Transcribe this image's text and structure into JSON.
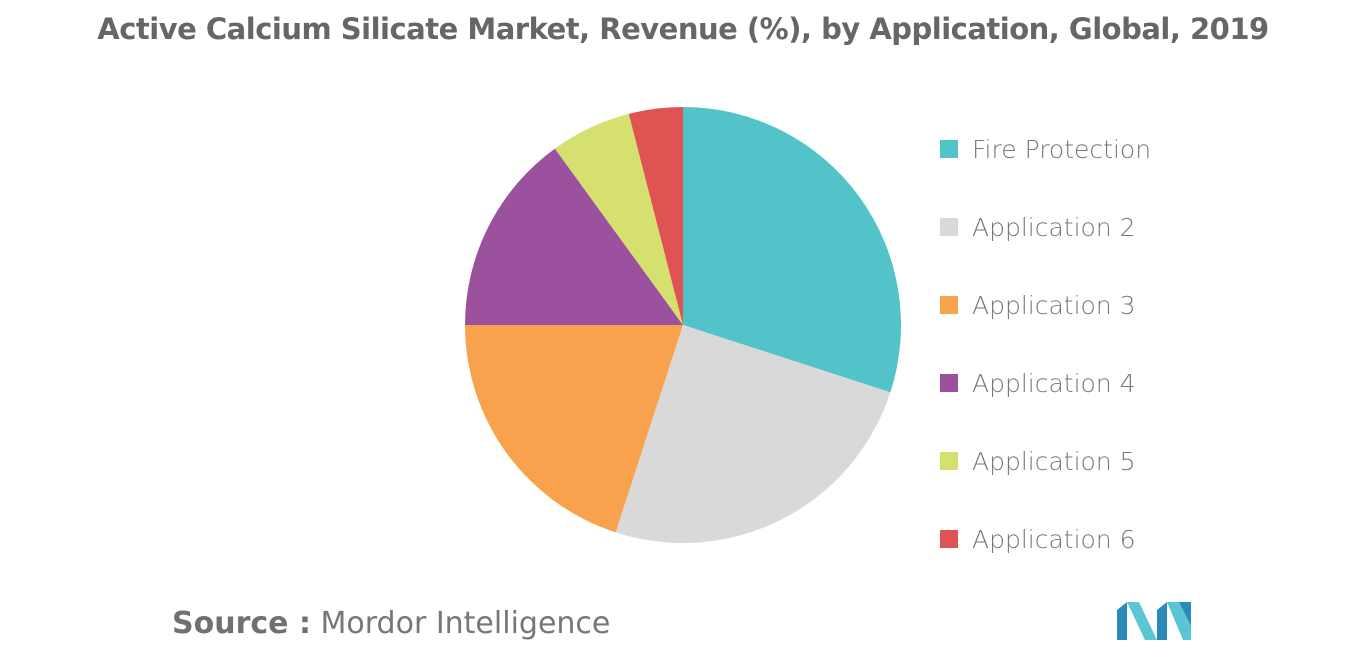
{
  "chart_data": {
    "type": "pie",
    "title": "Active Calcium Silicate Market, Revenue (%), by Application, Global, 2019",
    "categories": [
      "Fire Protection",
      "Application 2",
      "Application 3",
      "Application 4",
      "Application 5",
      "Application 6"
    ],
    "values": [
      30,
      25,
      20,
      15,
      6,
      4
    ],
    "colors": [
      "#52C3C9",
      "#D9D9D9",
      "#F9A24D",
      "#9B519E",
      "#D5E06E",
      "#E05353"
    ],
    "legend_position": "right"
  },
  "source": {
    "label": "Source :",
    "text": "Mordor Intelligence"
  },
  "logo": {
    "icon": "mordor-intelligence-logo-icon"
  }
}
